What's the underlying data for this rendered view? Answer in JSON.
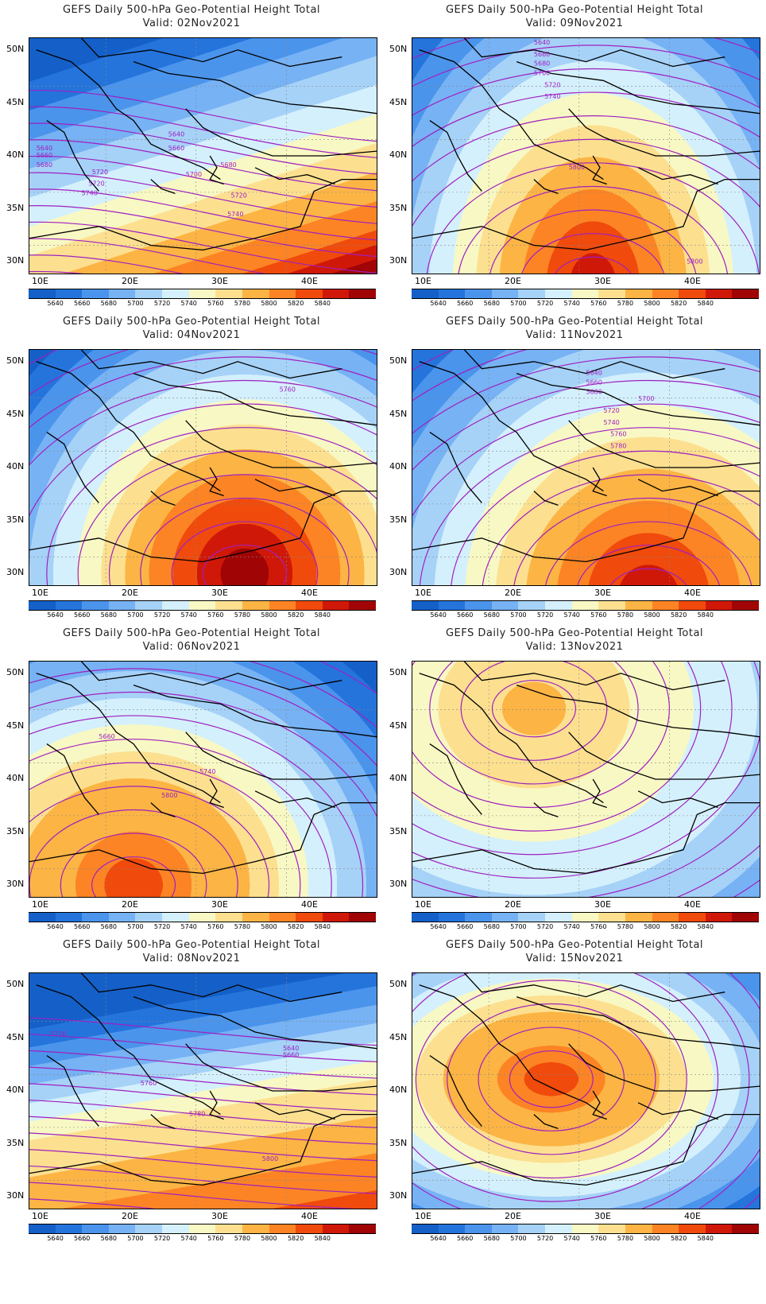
{
  "panels": [
    {
      "title": "GEFS Daily 500-hPa Geo-Potential Height Total",
      "valid": "Valid: 02Nov2021",
      "labels": [
        [
          "5640",
          0.4,
          0.39
        ],
        [
          "5660",
          0.4,
          0.45
        ],
        [
          "5640",
          0.02,
          0.45
        ],
        [
          "5660",
          0.02,
          0.48
        ],
        [
          "5680",
          0.02,
          0.52
        ],
        [
          "5680",
          0.55,
          0.52
        ],
        [
          "5700",
          0.45,
          0.56
        ],
        [
          "5720",
          0.18,
          0.55
        ],
        [
          "5720",
          0.17,
          0.6
        ],
        [
          "5740",
          0.15,
          0.64
        ],
        [
          "5720",
          0.58,
          0.65
        ],
        [
          "5740",
          0.57,
          0.73
        ]
      ],
      "lines": [
        [
          0,
          0.62,
          0.95,
          0.35,
          1,
          0.4
        ],
        [
          0,
          0.48,
          0.95,
          0.05,
          1,
          0.1
        ],
        [
          0,
          0.55,
          0.95,
          0.18,
          1,
          0.22
        ],
        [
          0,
          0.6,
          0.95,
          0.3,
          1,
          0.3
        ],
        [
          0,
          0.64,
          0.95,
          0.42,
          1,
          0.45
        ],
        [
          0,
          0.68,
          0.95,
          0.5,
          1,
          0.55
        ],
        [
          0,
          0.74,
          0.95,
          0.58,
          1,
          0.62
        ],
        [
          0,
          0.8,
          0.95,
          0.66,
          1,
          0.7
        ],
        [
          0,
          0.88,
          0.95,
          0.76,
          1,
          0.8
        ]
      ]
    },
    {
      "title": "GEFS Daily 500-hPa Geo-Potential Height Total",
      "valid": "Valid: 09Nov2021",
      "labels": [
        [
          "5640",
          0.35,
          0.0
        ],
        [
          "5660",
          0.35,
          0.05
        ],
        [
          "5680",
          0.35,
          0.09
        ],
        [
          "5700",
          0.35,
          0.13
        ],
        [
          "5720",
          0.38,
          0.18
        ],
        [
          "5740",
          0.38,
          0.23
        ],
        [
          "5800",
          0.45,
          0.53
        ],
        [
          "5800",
          0.79,
          0.93
        ]
      ],
      "lines": []
    },
    {
      "title": "GEFS Daily 500-hPa Geo-Potential Height Total",
      "valid": "Valid: 04Nov2021",
      "labels": [
        [
          "5760",
          0.72,
          0.15
        ]
      ],
      "lines": []
    },
    {
      "title": "GEFS Daily 500-hPa Geo-Potential Height Total",
      "valid": "Valid: 11Nov2021",
      "labels": [
        [
          "5640",
          0.5,
          0.08
        ],
        [
          "5660",
          0.5,
          0.12
        ],
        [
          "5680",
          0.5,
          0.16
        ],
        [
          "5700",
          0.65,
          0.19
        ],
        [
          "5720",
          0.55,
          0.24
        ],
        [
          "5740",
          0.55,
          0.29
        ],
        [
          "5760",
          0.57,
          0.34
        ],
        [
          "5780",
          0.57,
          0.39
        ]
      ],
      "lines": []
    },
    {
      "title": "GEFS Daily 500-hPa Geo-Potential Height Total",
      "valid": "Valid: 06Nov2021",
      "labels": [
        [
          "5660",
          0.2,
          0.3
        ],
        [
          "5740",
          0.49,
          0.45
        ],
        [
          "5800",
          0.38,
          0.55
        ]
      ],
      "lines": []
    },
    {
      "title": "GEFS Daily 500-hPa Geo-Potential Height Total",
      "valid": "Valid: 13Nov2021",
      "labels": [],
      "lines": []
    },
    {
      "title": "GEFS Daily 500-hPa Geo-Potential Height Total",
      "valid": "Valid: 08Nov2021",
      "labels": [
        [
          "5720",
          0.06,
          0.24
        ],
        [
          "5640",
          0.73,
          0.3
        ],
        [
          "5660",
          0.73,
          0.33
        ],
        [
          "5760",
          0.32,
          0.45
        ],
        [
          "5780",
          0.46,
          0.58
        ],
        [
          "5800",
          0.67,
          0.77
        ]
      ],
      "lines": []
    },
    {
      "title": "GEFS Daily 500-hPa Geo-Potential Height Total",
      "valid": "Valid: 15Nov2021",
      "labels": [],
      "lines": []
    }
  ],
  "axes": {
    "xticks": [
      "10E",
      "20E",
      "30E",
      "40E"
    ],
    "yticks": [
      "50N",
      "45N",
      "40N",
      "35N",
      "30N"
    ]
  },
  "colorbar": {
    "labels": [
      "5640",
      "5660",
      "5680",
      "5700",
      "5720",
      "5740",
      "5760",
      "5780",
      "5800",
      "5820",
      "5840"
    ],
    "colors": [
      "#1460c8",
      "#2474dc",
      "#4a94ec",
      "#76b2f4",
      "#a6d2f8",
      "#d4f0fc",
      "#f8f8c4",
      "#fce090",
      "#fcb444",
      "#fc8424",
      "#f04a0c",
      "#d01808",
      "#a00404"
    ]
  }
}
